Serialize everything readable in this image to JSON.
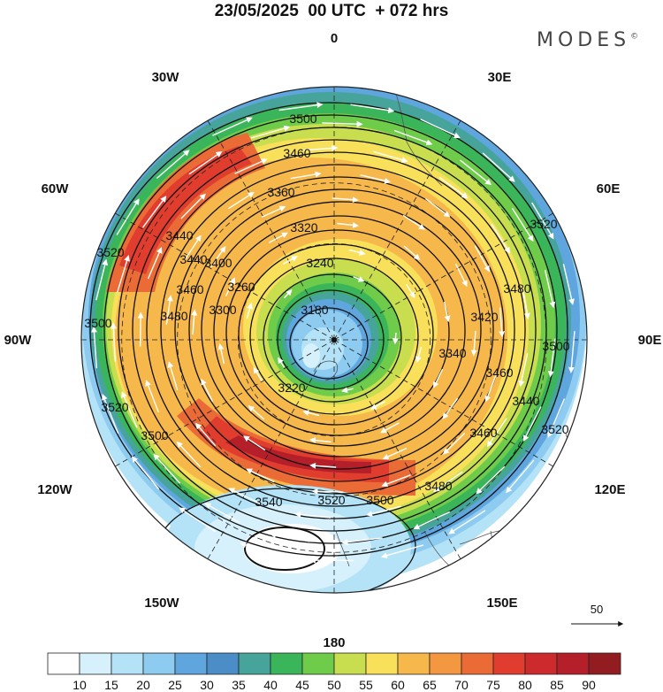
{
  "title": "23/05/2025  00 UTC  + 072 hrs",
  "brand": {
    "name": "MODES",
    "mark": "©"
  },
  "map": {
    "projection": "south-polar-stereographic",
    "longitude_labels": [
      "0",
      "30E",
      "60E",
      "90E",
      "120E",
      "150E",
      "180",
      "150W",
      "120W",
      "90W",
      "60W",
      "30W"
    ],
    "contour_labels": [
      "3180",
      "3220",
      "3240",
      "3260",
      "3300",
      "3320",
      "3340",
      "3360",
      "3400",
      "3420",
      "3440",
      "3460",
      "3480",
      "3500",
      "3520",
      "3540"
    ],
    "wind_reference": {
      "value": "50"
    }
  },
  "colorbar": {
    "ticks": [
      "10",
      "15",
      "20",
      "25",
      "30",
      "35",
      "40",
      "45",
      "50",
      "55",
      "60",
      "65",
      "70",
      "75",
      "80",
      "85",
      "90"
    ],
    "colors": [
      "#ffffff",
      "#d6f1fc",
      "#b4e3f7",
      "#8dcbf0",
      "#5fa6df",
      "#4b8dc6",
      "#47a49b",
      "#3bb559",
      "#6fcb4a",
      "#c8de4e",
      "#f9e05b",
      "#f6b84a",
      "#f39841",
      "#eb6b36",
      "#e03d2e",
      "#cc2a2d",
      "#b41f2a",
      "#921c20"
    ]
  }
}
